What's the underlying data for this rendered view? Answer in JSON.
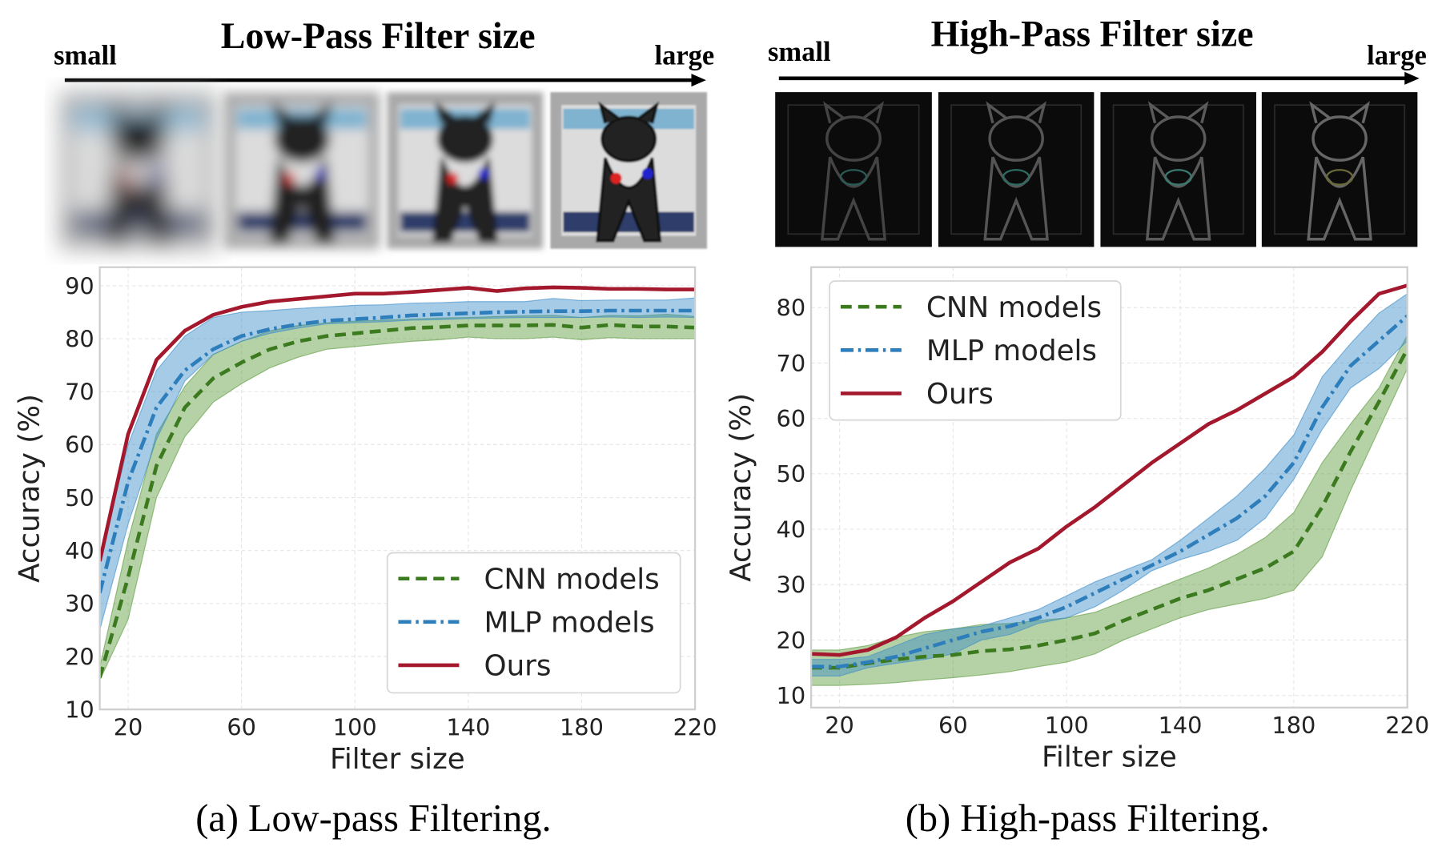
{
  "panels": [
    {
      "header": {
        "title": "Low-Pass Filter size",
        "small": "small",
        "large": "large"
      },
      "thumbnail_style": "low-pass",
      "caption": "(a) Low-pass Filtering."
    },
    {
      "header": {
        "title": "High-Pass Filter size",
        "small": "small",
        "large": "large"
      },
      "thumbnail_style": "high-pass",
      "caption": "(b) High-pass Filtering."
    }
  ],
  "colors": {
    "cnn": "#3b7a1e",
    "mlp": "#2e7ebc",
    "ours": "#a3182d",
    "cnn_band": "#5a9a3a",
    "mlp_band": "#3a8cc8"
  },
  "chart_data": [
    {
      "type": "line",
      "xlabel": "Filter size",
      "ylabel": "Accuracy (%)",
      "xlim": [
        10,
        220
      ],
      "ylim": [
        10,
        93.5
      ],
      "xticks": [
        20,
        60,
        100,
        140,
        180,
        220
      ],
      "yticks": [
        10,
        20,
        30,
        40,
        50,
        60,
        70,
        80,
        90
      ],
      "grid": true,
      "legend_position": "bottom-right",
      "x": [
        10,
        20,
        30,
        40,
        50,
        60,
        70,
        80,
        90,
        100,
        110,
        120,
        130,
        140,
        150,
        160,
        170,
        180,
        190,
        200,
        210,
        220
      ],
      "series": [
        {
          "name": "CNN models",
          "key": "cnn",
          "style": "dashed",
          "values": [
            16,
            35,
            56,
            67,
            72.5,
            75.5,
            78,
            79.5,
            80.5,
            81,
            81.5,
            82,
            82.2,
            82.5,
            82.5,
            82.5,
            82.6,
            82.1,
            82.6,
            82.3,
            82.3,
            82.1
          ],
          "lower": [
            15.5,
            27,
            50,
            61.5,
            68,
            71.5,
            74.5,
            76.5,
            78,
            78.5,
            79,
            79.5,
            79.8,
            80.3,
            80,
            80,
            80.3,
            79.8,
            80.2,
            80,
            80,
            80
          ],
          "upper": [
            18,
            42,
            62,
            71,
            77,
            79.5,
            81.5,
            82.5,
            83,
            83.3,
            83.5,
            83.7,
            83.9,
            84,
            84.2,
            84.3,
            84.4,
            84,
            84.4,
            84.3,
            84.6,
            84.2
          ]
        },
        {
          "name": "MLP models",
          "key": "mlp",
          "style": "dashdot",
          "values": [
            32,
            53,
            67,
            74,
            78,
            80.5,
            81.8,
            82.7,
            83.4,
            83.7,
            84,
            84.4,
            84.6,
            84.8,
            85,
            85.1,
            85.2,
            85.2,
            85.3,
            85.3,
            85.3,
            85.3
          ],
          "lower": [
            25,
            45,
            61,
            72,
            77,
            79.5,
            81,
            82,
            82.8,
            83,
            83.2,
            83.5,
            83.6,
            83.8,
            83.9,
            84,
            84,
            84,
            84.1,
            84,
            84.1,
            84
          ],
          "upper": [
            38,
            60,
            74,
            80.5,
            84,
            85,
            85.3,
            85.7,
            86,
            86.3,
            86.4,
            86.7,
            86.8,
            87,
            87,
            87,
            87.6,
            87.2,
            87.3,
            87.3,
            87.3,
            87.7
          ]
        },
        {
          "name": "Ours",
          "key": "ours",
          "style": "solid",
          "values": [
            38,
            62,
            76,
            81.5,
            84.5,
            86,
            87,
            87.5,
            88,
            88.5,
            88.5,
            88.8,
            89.2,
            89.6,
            89,
            89.5,
            89.7,
            89.6,
            89.4,
            89.4,
            89.3,
            89.3
          ]
        }
      ]
    },
    {
      "type": "line",
      "xlabel": "Filter size",
      "ylabel": "Accuracy (%)",
      "xlim": [
        10,
        220
      ],
      "ylim": [
        7.8,
        87.3
      ],
      "xticks": [
        20,
        60,
        100,
        140,
        180,
        220
      ],
      "yticks": [
        10,
        20,
        30,
        40,
        50,
        60,
        70,
        80
      ],
      "grid": true,
      "legend_position": "top-left",
      "x": [
        10,
        20,
        30,
        40,
        50,
        60,
        70,
        80,
        90,
        100,
        110,
        120,
        130,
        140,
        150,
        160,
        170,
        180,
        190,
        200,
        210,
        220
      ],
      "series": [
        {
          "name": "CNN models",
          "key": "cnn",
          "style": "dashed",
          "values": [
            15,
            15,
            15.8,
            16.5,
            17,
            17.3,
            18,
            18.3,
            19,
            20,
            21.2,
            23.5,
            25.5,
            27.5,
            29,
            31,
            33,
            36,
            44,
            54,
            63,
            72.5
          ],
          "lower": [
            11.8,
            11.8,
            12,
            12.3,
            12.8,
            13.2,
            13.7,
            14.3,
            15.2,
            16,
            17.5,
            20,
            22,
            24,
            25.5,
            26.5,
            27.5,
            29,
            35,
            47,
            58,
            69
          ],
          "upper": [
            18.2,
            18.2,
            19,
            20.5,
            21.5,
            22,
            22.8,
            23,
            23.5,
            24,
            25,
            27,
            29,
            31,
            33,
            35.5,
            38.5,
            43,
            52,
            59,
            65.5,
            75
          ]
        },
        {
          "name": "MLP models",
          "key": "mlp",
          "style": "dashdot",
          "values": [
            15.2,
            15.2,
            16,
            17,
            18.5,
            20,
            21.5,
            22.5,
            24,
            26,
            28.5,
            31,
            33.5,
            36,
            39,
            42,
            46,
            52,
            62,
            69.5,
            74,
            78.5
          ],
          "lower": [
            13.5,
            13.5,
            15,
            15.8,
            16.5,
            17.5,
            20,
            21,
            23,
            24,
            26,
            29,
            32.5,
            34.5,
            36,
            38,
            42,
            49,
            58,
            65.5,
            69,
            74
          ],
          "upper": [
            16.5,
            16.5,
            17,
            19,
            21,
            22,
            22.5,
            24,
            25.5,
            28,
            30.5,
            32.5,
            34.5,
            38,
            42,
            46,
            51,
            57,
            67.5,
            73.5,
            79,
            82.5
          ]
        },
        {
          "name": "Ours",
          "key": "ours",
          "style": "solid",
          "values": [
            17.5,
            17.3,
            18.2,
            20.5,
            24,
            27,
            30.5,
            34,
            36.5,
            40.5,
            44,
            48,
            52,
            55.5,
            59,
            61.5,
            64.5,
            67.5,
            72,
            77.5,
            82.5,
            84
          ]
        }
      ]
    }
  ]
}
